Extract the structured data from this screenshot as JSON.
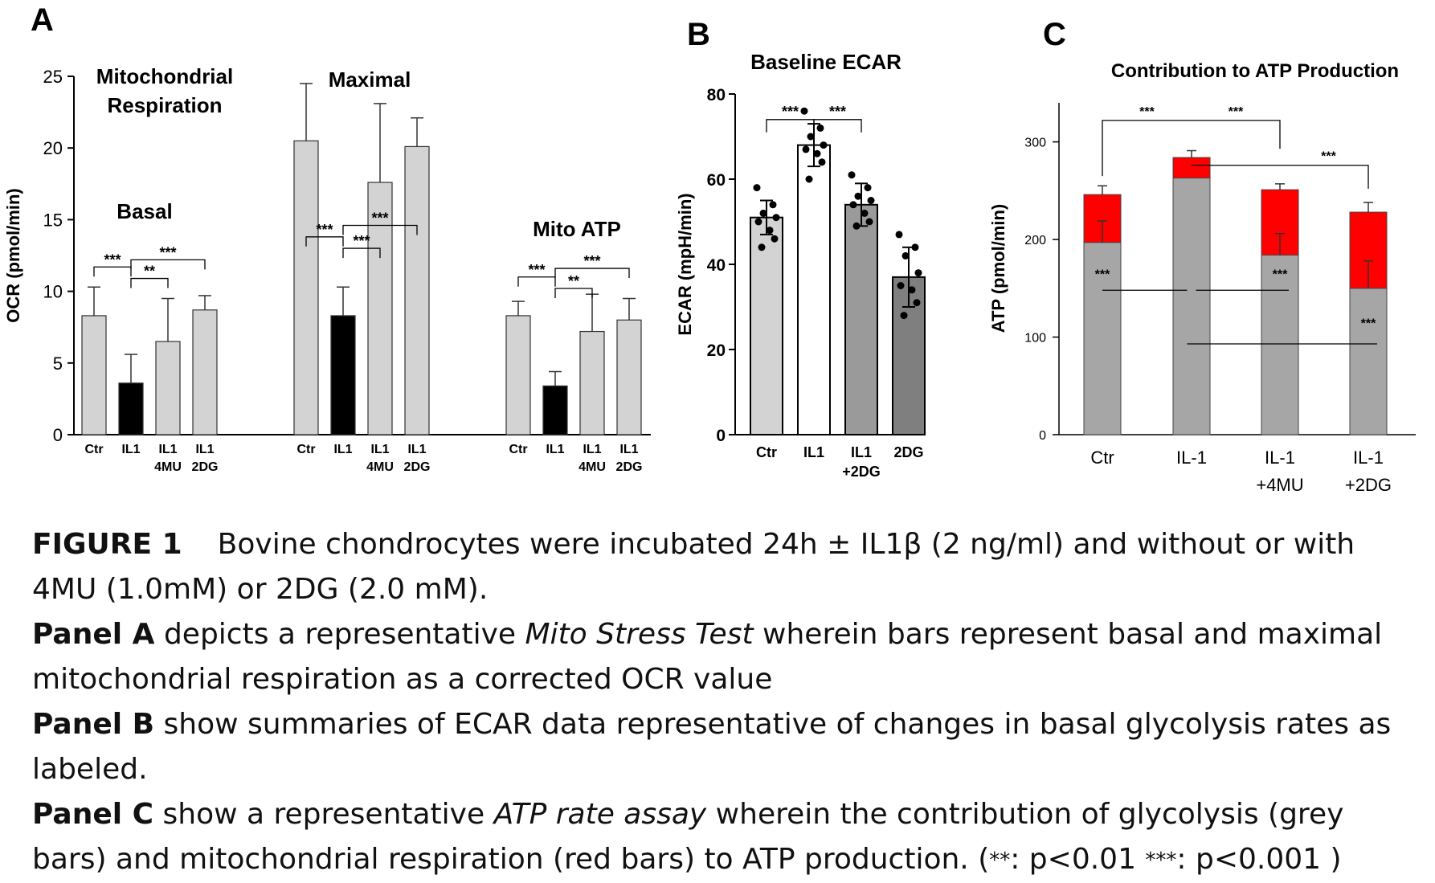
{
  "colors": {
    "light_bar": "#d3d3d3",
    "dark_bar": "#000000",
    "white_bar": "#ffffff",
    "mid_gray_bar": "#9a9a9a",
    "glycolysis_gray": "#a6a6a6",
    "mito_red": "#ff0000"
  },
  "chart_data": [
    {
      "panel": "A",
      "type": "bar",
      "ylabel": "OCR (pmol/min)",
      "ylim": [
        0,
        25
      ],
      "yticks": [
        0,
        5,
        10,
        15,
        20,
        25
      ],
      "groups": [
        {
          "title_lines": [
            "Mitochondrial",
            "Respiration"
          ],
          "subtitle": "Basal",
          "bars": [
            {
              "label": [
                "Ctr"
              ],
              "value": 8.3,
              "err": 2.0,
              "color": "light"
            },
            {
              "label": [
                "IL1"
              ],
              "value": 3.6,
              "err": 2.0,
              "color": "dark"
            },
            {
              "label": [
                "IL1",
                "4MU"
              ],
              "value": 6.5,
              "err": 3.0,
              "color": "light"
            },
            {
              "label": [
                "IL1",
                "2DG"
              ],
              "value": 8.7,
              "err": 1.0,
              "color": "light"
            }
          ],
          "significance": [
            {
              "from": 0,
              "to": 1,
              "label": "***",
              "level": 11.7
            },
            {
              "from": 1,
              "to": 2,
              "label": "**",
              "level": 10.9
            },
            {
              "from": 1,
              "to": 3,
              "label": "***",
              "level": 12.2
            }
          ]
        },
        {
          "title_lines": [
            "Maximal"
          ],
          "subtitle": "",
          "bars": [
            {
              "label": [
                "Ctr"
              ],
              "value": 20.5,
              "err": 4.0,
              "color": "light"
            },
            {
              "label": [
                "IL1"
              ],
              "value": 8.3,
              "err": 2.0,
              "color": "dark"
            },
            {
              "label": [
                "IL1",
                "4MU"
              ],
              "value": 17.6,
              "err": 5.5,
              "color": "light"
            },
            {
              "label": [
                "IL1",
                "2DG"
              ],
              "value": 20.1,
              "err": 2.0,
              "color": "light"
            }
          ],
          "significance": [
            {
              "from": 0,
              "to": 1,
              "label": "***",
              "level": 13.8
            },
            {
              "from": 1,
              "to": 2,
              "label": "***",
              "level": 13.0
            },
            {
              "from": 1,
              "to": 3,
              "label": "***",
              "level": 14.6
            }
          ]
        },
        {
          "title_lines": [
            "Mito ATP"
          ],
          "subtitle": "",
          "bars": [
            {
              "label": [
                "Ctr"
              ],
              "value": 8.3,
              "err": 1.0,
              "color": "light"
            },
            {
              "label": [
                "IL1"
              ],
              "value": 3.4,
              "err": 1.0,
              "color": "dark"
            },
            {
              "label": [
                "IL1",
                "4MU"
              ],
              "value": 7.2,
              "err": 2.6,
              "color": "light"
            },
            {
              "label": [
                "IL1",
                "2DG"
              ],
              "value": 8.0,
              "err": 1.5,
              "color": "light"
            }
          ],
          "significance": [
            {
              "from": 0,
              "to": 1,
              "label": "***",
              "level": 11.0
            },
            {
              "from": 1,
              "to": 2,
              "label": "**",
              "level": 10.2
            },
            {
              "from": 1,
              "to": 3,
              "label": "***",
              "level": 11.6
            }
          ]
        }
      ]
    },
    {
      "panel": "B",
      "type": "bar",
      "title": "Baseline ECAR",
      "ylabel": "ECAR (mpH/min)",
      "ylim": [
        0,
        80
      ],
      "yticks": [
        0,
        20,
        40,
        60,
        80
      ],
      "bars": [
        {
          "label": [
            "Ctr"
          ],
          "value": 51,
          "err": 4,
          "color": "light",
          "points": [
            58,
            54,
            52,
            51,
            50,
            48,
            46,
            44
          ]
        },
        {
          "label": [
            "IL1"
          ],
          "value": 68,
          "err": 5,
          "color": "white",
          "points": [
            76,
            72,
            70,
            68,
            67,
            66,
            64,
            60
          ]
        },
        {
          "label": [
            "IL1",
            "+2DG"
          ],
          "value": 54,
          "err": 5,
          "color": "midgray",
          "points": [
            61,
            58,
            56,
            55,
            54,
            52,
            50,
            49
          ]
        },
        {
          "label": [
            "2DG"
          ],
          "value": 37,
          "err": 7,
          "color": "darkgray",
          "points": [
            47,
            44,
            42,
            38,
            35,
            34,
            31,
            28
          ]
        }
      ],
      "significance": [
        {
          "from": 0,
          "to": 1,
          "label": "***",
          "level": 74
        },
        {
          "from": 1,
          "to": 2,
          "label": "***",
          "level": 74
        }
      ]
    },
    {
      "panel": "C",
      "type": "bar",
      "title": "Contribution to ATP Production",
      "ylabel": "ATP (pmol/min)",
      "ylim": [
        0,
        340
      ],
      "yticks": [
        0,
        100,
        200,
        300
      ],
      "categories": [
        [
          "Ctr"
        ],
        [
          "IL-1"
        ],
        [
          "IL-1",
          "+4MU"
        ],
        [
          "IL-1",
          "+2DG"
        ]
      ],
      "series": [
        {
          "values": [
            197,
            263,
            184,
            150
          ],
          "errs": [
            22,
            0,
            22,
            28
          ],
          "color": "gray"
        },
        {
          "values": [
            49,
            21,
            67,
            78
          ],
          "errs": [
            9,
            7,
            6,
            10
          ],
          "color": "red"
        }
      ],
      "significance_top": [
        {
          "from": 0,
          "to": 1,
          "label": "***",
          "level": 322
        },
        {
          "from": 1,
          "to": 2,
          "label": "***",
          "level": 322
        },
        {
          "from": 1,
          "to": 3,
          "label": "***",
          "level": 276,
          "label_x": 2.55
        }
      ],
      "significance_lines": [
        {
          "x0": 0.0,
          "x1": 0.95,
          "value": 148,
          "label": "***",
          "label_x": 0.0,
          "label_value": 160
        },
        {
          "x0": 1.05,
          "x1": 2.1,
          "value": 148,
          "label": "***",
          "label_x": 2.0,
          "label_value": 160
        },
        {
          "x0": 0.95,
          "x1": 3.1,
          "value": 93,
          "label": "***",
          "label_x": 3.0,
          "label_value": 110
        }
      ]
    }
  ],
  "panel_letters": [
    "A",
    "B",
    "C"
  ],
  "caption": {
    "fig_label": "FIGURE 1",
    "line1_a": "Bovine chondrocytes were incubated 24h ",
    "pm": "±",
    "line1_b": " IL1β (2 ng/ml) and without or with 4MU (1.0mM) or 2DG (2.0 mM).",
    "panelA_label": "Panel A",
    "panelA_a": " depicts a representative ",
    "panelA_italic": "Mito Stress Test",
    "panelA_b": " wherein bars represent basal and maximal mitochondrial respiration as a corrected OCR value",
    "panelB_label": "Panel B",
    "panelB_text": " show summaries of ECAR data representative of changes in basal glycolysis rates as labeled.",
    "panelC_label": "Panel C",
    "panelC_a": " show a representative ",
    "panelC_italic": "ATP rate assay",
    "panelC_b": " wherein the contribution of glycolysis (grey bars) and mitochondrial respiration (red bars) to ATP production. (",
    "star2": "**",
    "p001": ": p<0.01 ",
    "star3": "***",
    "p0001": ": p<0.001 )"
  }
}
